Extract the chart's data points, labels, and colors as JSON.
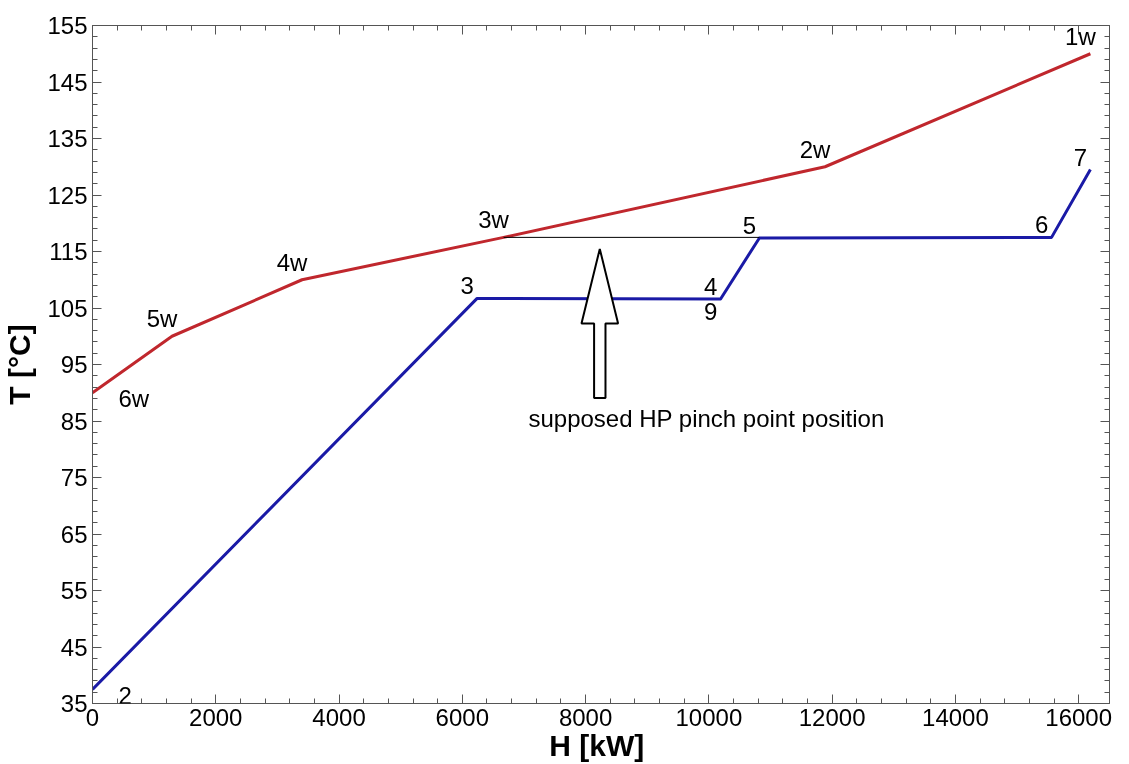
{
  "chart_data": {
    "type": "line",
    "xlabel": "H  [kW]",
    "ylabel": "T [°C]",
    "xlim": [
      0,
      16500
    ],
    "ylim": [
      35,
      155
    ],
    "xticks": [
      0,
      2000,
      4000,
      6000,
      8000,
      10000,
      12000,
      14000,
      16000
    ],
    "yticks": [
      35,
      45,
      55,
      65,
      75,
      85,
      95,
      105,
      115,
      125,
      135,
      145,
      155
    ],
    "grid": false,
    "marker": "none",
    "line_style": "solid",
    "series": [
      {
        "color": "#c0272d",
        "x": [
          0,
          1290,
          3400,
          6670,
          11885,
          16190
        ],
        "values": [
          90,
          100,
          110,
          117.5,
          130,
          150
        ]
      },
      {
        "color": "#1a1aa6",
        "x": [
          0,
          6240,
          10190,
          10820,
          15560,
          16190
        ],
        "values": [
          37.5,
          106.7,
          106.6,
          117.4,
          117.5,
          129.5
        ]
      },
      {
        "color": "#000000",
        "x": [
          6670,
          10820
        ],
        "values": [
          117.5,
          117.5
        ]
      }
    ],
    "annotations": [
      "supposed HP pinch point position",
      {
        "text": "1w",
        "x": 16190,
        "y": 150
      },
      {
        "text": "2w",
        "x": 11885,
        "y": 130
      },
      {
        "text": "3w",
        "x": 6670,
        "y": 117.5
      },
      {
        "text": "4w",
        "x": 3400,
        "y": 110
      },
      {
        "text": "5w",
        "x": 1290,
        "y": 100
      },
      {
        "text": "6w",
        "x": 0,
        "y": 90
      },
      {
        "text": "2",
        "x": 0,
        "y": 37.5
      },
      {
        "text": "3",
        "x": 6240,
        "y": 106.7
      },
      {
        "text": "4",
        "x": 10190,
        "y": 106.6
      },
      {
        "text": "9",
        "x": 10190,
        "y": 106.6
      },
      {
        "text": "5",
        "x": 10820,
        "y": 117.4
      },
      {
        "text": "6",
        "x": 15560,
        "y": 117.5
      },
      {
        "text": "7",
        "x": 16190,
        "y": 129.5
      }
    ]
  }
}
